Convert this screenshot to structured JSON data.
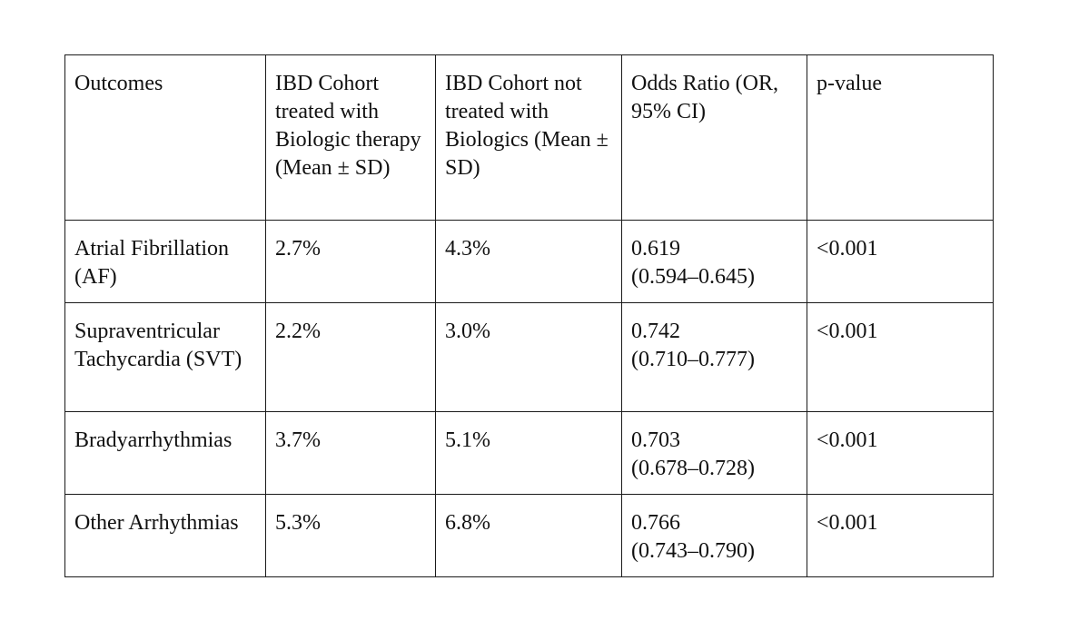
{
  "table": {
    "headers": {
      "outcomes": "Outcomes",
      "biologic": " IBD Cohort treated with Biologic therapy (Mean ± SD)",
      "no_biologic": "IBD Cohort not treated with Biologics (Mean ± SD)",
      "odds_ratio": "Odds Ratio (OR, 95% CI)",
      "p_value": "p-value"
    },
    "rows": [
      {
        "outcome": "Atrial Fibrillation (AF)",
        "biologic": "2.7%",
        "no_biologic": "4.3%",
        "or": "0.619",
        "ci": "(0.594–0.645)",
        "p": "<0.001"
      },
      {
        "outcome": "Supraventricular Tachycardia (SVT)",
        "biologic": "2.2%",
        "no_biologic": "3.0%",
        "or": "0.742",
        "ci": "(0.710–0.777)",
        "p": "<0.001"
      },
      {
        "outcome": "Bradyarrhythmias",
        "biologic": "3.7%",
        "no_biologic": "5.1%",
        "or": "0.703",
        "ci": "(0.678–0.728)",
        "p": "<0.001"
      },
      {
        "outcome": "Other Arrhythmias",
        "biologic": "5.3%",
        "no_biologic": "6.8%",
        "or": "0.766",
        "ci": "(0.743–0.790)",
        "p": "<0.001"
      }
    ]
  }
}
